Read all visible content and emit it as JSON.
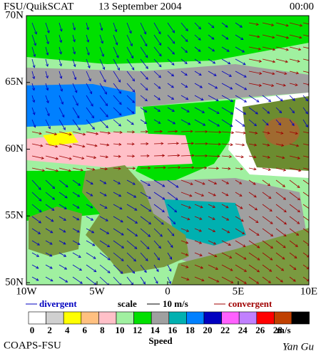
{
  "header": {
    "source": "FSU/QuikSCAT",
    "date": "13 September 2004",
    "time": "00:00"
  },
  "map": {
    "lat_labels": [
      "70N",
      "65N",
      "60N",
      "55N",
      "50N"
    ],
    "lon_labels": [
      "10W",
      "5W",
      "0",
      "5E",
      "10E"
    ]
  },
  "legend": {
    "divergent": "divergent",
    "scale": "scale",
    "scale_value": "10 m/s",
    "convergent": "convergent"
  },
  "colorbar": {
    "title": "Speed",
    "unit": "m/s",
    "labels": [
      0,
      2,
      4,
      6,
      8,
      10,
      12,
      14,
      16,
      18,
      20,
      22,
      24,
      26,
      28
    ],
    "colors": [
      "#ffffff",
      "#d0d0d0",
      "#ffff00",
      "#ffc080",
      "#ffc0c8",
      "#a0f0a0",
      "#00e000",
      "#a0a0a0",
      "#00b0b0",
      "#0080ff",
      "#0000c0",
      "#ff60ff",
      "#c080ff",
      "#ff0000",
      "#c04000",
      "#000000"
    ]
  },
  "footer": {
    "left": "COAPS-FSU",
    "right": "Yan Gu"
  }
}
